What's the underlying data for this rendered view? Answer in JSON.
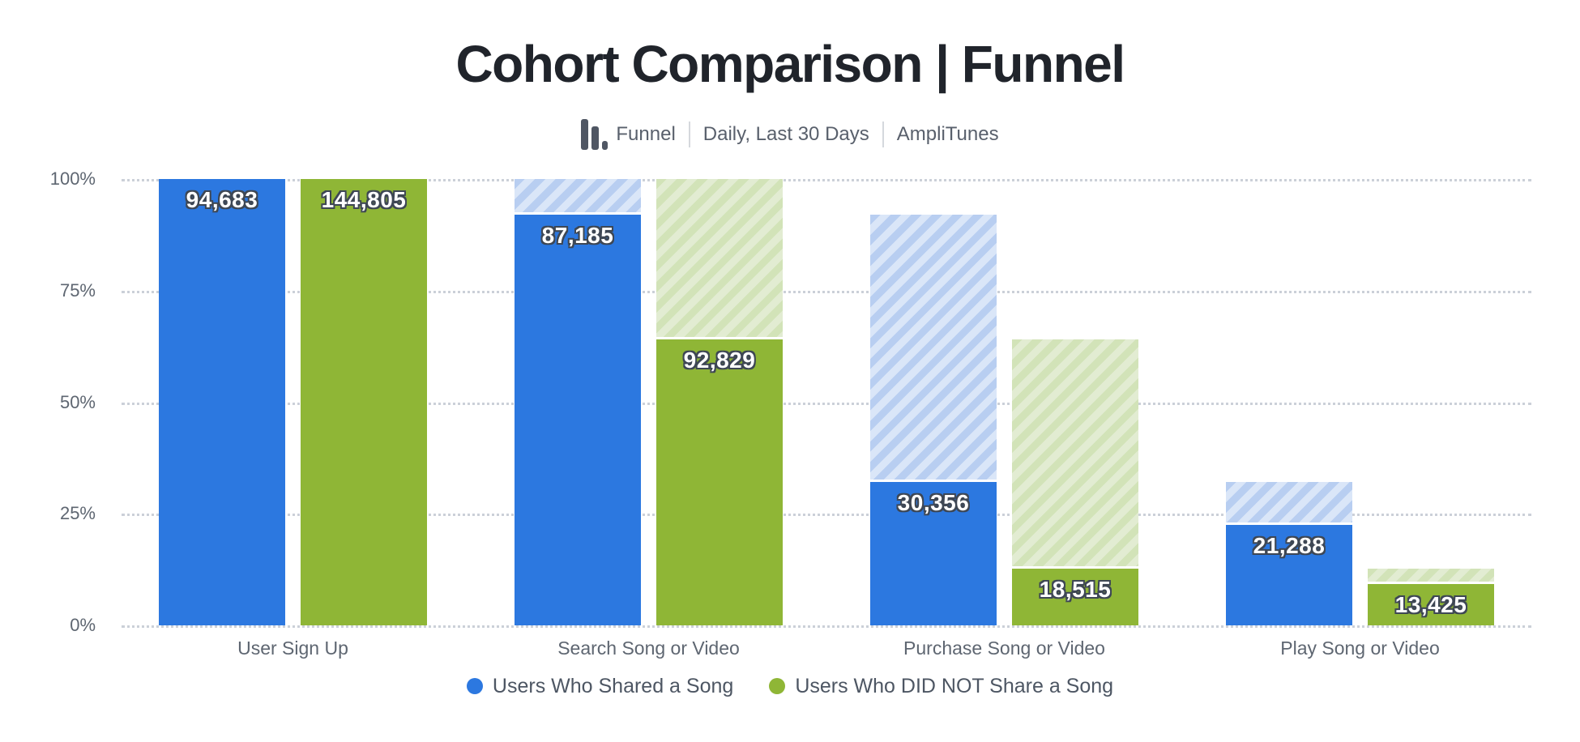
{
  "page": {
    "background": "#ffffff"
  },
  "header": {
    "title": "Cohort Comparison | Funnel",
    "meta": {
      "chart_type_label": "Funnel",
      "date_range": "Daily, Last 30 Days",
      "source": "AmpliTunes"
    }
  },
  "chart_data": {
    "type": "bar",
    "subtype": "cohort-comparison-funnel",
    "title": "Cohort Comparison | Funnel",
    "categories": [
      "User Sign Up",
      "Search Song or Video",
      "Purchase Song or Video",
      "Play Song or Video"
    ],
    "series": [
      {
        "name": "Users Who Shared a Song",
        "color": "#2C78E0",
        "hatch_base": "#DAE6F8",
        "hatch_stripe": "#B8CEF1",
        "values": [
          94683,
          87185,
          30356,
          21288
        ],
        "value_labels": [
          "94,683",
          "87,185",
          "30,356",
          "21,288"
        ],
        "pct_of_first": [
          100,
          92.08,
          32.06,
          22.48
        ]
      },
      {
        "name": "Users Who DID NOT Share a Song",
        "color": "#8FB636",
        "hatch_base": "#E2ECD2",
        "hatch_stripe": "#D2E3B8",
        "values": [
          144805,
          92829,
          18515,
          13425
        ],
        "value_labels": [
          "144,805",
          "92,829",
          "18,515",
          "13,425"
        ],
        "pct_of_first": [
          100,
          64.11,
          12.79,
          9.27
        ]
      }
    ],
    "y_axis": {
      "min": 0,
      "max": 100,
      "ticks": [
        {
          "label": "100%",
          "value": 100
        },
        {
          "label": "75%",
          "value": 75
        },
        {
          "label": "50%",
          "value": 50
        },
        {
          "label": "25%",
          "value": 25
        },
        {
          "label": "0%",
          "value": 0
        }
      ]
    },
    "grid": "dotted-horizontal",
    "legend_position": "bottom",
    "hatch_note": "hatched segment above each solid bar spans up to the previous funnel step's conversion level"
  }
}
